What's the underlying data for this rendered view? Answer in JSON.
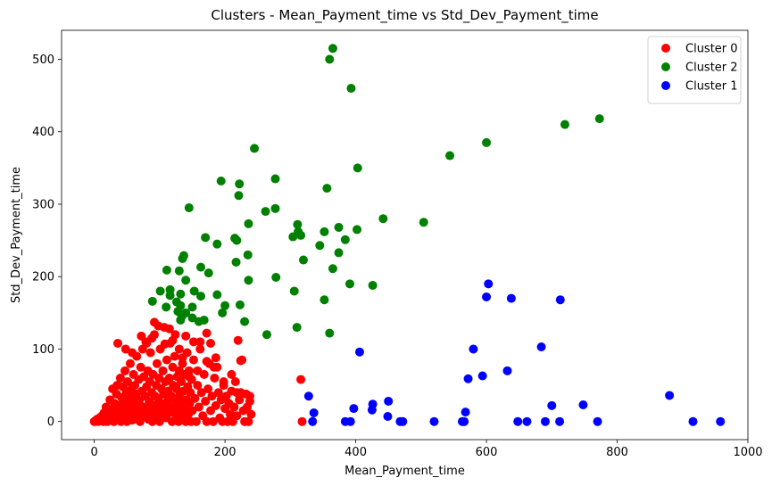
{
  "chart_data": {
    "type": "scatter",
    "title": "Clusters - Mean_Payment_time vs Std_Dev_Payment_time",
    "xlabel": "Mean_Payment_time",
    "ylabel": "Std_Dev_Payment_time",
    "xlim": [
      -50,
      1000
    ],
    "ylim": [
      -25,
      540
    ],
    "xticks": [
      0,
      200,
      400,
      600,
      800,
      1000
    ],
    "yticks": [
      0,
      100,
      200,
      300,
      400,
      500
    ],
    "grid": false,
    "legend_position": "top-right",
    "series": [
      {
        "name": "Cluster 0",
        "color": "#ff0000",
        "points": [
          [
            0,
            0
          ],
          [
            2,
            1
          ],
          [
            4,
            3
          ],
          [
            6,
            0
          ],
          [
            8,
            5
          ],
          [
            10,
            2
          ],
          [
            12,
            8
          ],
          [
            14,
            0
          ],
          [
            15,
            12
          ],
          [
            16,
            4
          ],
          [
            18,
            20
          ],
          [
            20,
            0
          ],
          [
            21,
            15
          ],
          [
            22,
            6
          ],
          [
            24,
            30
          ],
          [
            25,
            10
          ],
          [
            26,
            2
          ],
          [
            28,
            45
          ],
          [
            29,
            18
          ],
          [
            30,
            0
          ],
          [
            31,
            25
          ],
          [
            32,
            8
          ],
          [
            34,
            38
          ],
          [
            35,
            50
          ],
          [
            36,
            14
          ],
          [
            37,
            3
          ],
          [
            38,
            22
          ],
          [
            40,
            60
          ],
          [
            41,
            0
          ],
          [
            42,
            33
          ],
          [
            43,
            12
          ],
          [
            44,
            48
          ],
          [
            45,
            5
          ],
          [
            46,
            27
          ],
          [
            47,
            70
          ],
          [
            48,
            16
          ],
          [
            49,
            40
          ],
          [
            50,
            0
          ],
          [
            51,
            55
          ],
          [
            52,
            20
          ],
          [
            53,
            8
          ],
          [
            54,
            35
          ],
          [
            55,
            80
          ],
          [
            56,
            12
          ],
          [
            57,
            45
          ],
          [
            58,
            2
          ],
          [
            59,
            28
          ],
          [
            60,
            65
          ],
          [
            61,
            18
          ],
          [
            62,
            50
          ],
          [
            63,
            5
          ],
          [
            64,
            38
          ],
          [
            65,
            90
          ],
          [
            66,
            24
          ],
          [
            67,
            10
          ],
          [
            68,
            58
          ],
          [
            69,
            30
          ],
          [
            70,
            0
          ],
          [
            71,
            75
          ],
          [
            72,
            15
          ],
          [
            73,
            42
          ],
          [
            74,
            100
          ],
          [
            75,
            20
          ],
          [
            76,
            62
          ],
          [
            77,
            8
          ],
          [
            78,
            35
          ],
          [
            79,
            110
          ],
          [
            80,
            48
          ],
          [
            81,
            18
          ],
          [
            82,
            70
          ],
          [
            83,
            3
          ],
          [
            84,
            28
          ],
          [
            85,
            55
          ],
          [
            86,
            95
          ],
          [
            87,
            12
          ],
          [
            88,
            40
          ],
          [
            89,
            0
          ],
          [
            90,
            65
          ],
          [
            91,
            22
          ],
          [
            92,
            120
          ],
          [
            93,
            35
          ],
          [
            94,
            8
          ],
          [
            95,
            50
          ],
          [
            96,
            80
          ],
          [
            97,
            15
          ],
          [
            98,
            30
          ],
          [
            99,
            60
          ],
          [
            100,
            0
          ],
          [
            101,
            100
          ],
          [
            102,
            25
          ],
          [
            103,
            45
          ],
          [
            104,
            10
          ],
          [
            105,
            70
          ],
          [
            106,
            38
          ],
          [
            107,
            130
          ],
          [
            108,
            18
          ],
          [
            109,
            55
          ],
          [
            110,
            5
          ],
          [
            111,
            85
          ],
          [
            112,
            28
          ],
          [
            113,
            42
          ],
          [
            114,
            12
          ],
          [
            115,
            60
          ],
          [
            116,
            108
          ],
          [
            117,
            20
          ],
          [
            118,
            35
          ],
          [
            119,
            0
          ],
          [
            120,
            75
          ],
          [
            121,
            50
          ],
          [
            122,
            15
          ],
          [
            123,
            90
          ],
          [
            124,
            30
          ],
          [
            125,
            8
          ],
          [
            126,
            45
          ],
          [
            127,
            62
          ],
          [
            128,
            22
          ],
          [
            129,
            0
          ],
          [
            130,
            100
          ],
          [
            131,
            38
          ],
          [
            132,
            12
          ],
          [
            133,
            55
          ],
          [
            134,
            28
          ],
          [
            135,
            80
          ],
          [
            136,
            5
          ],
          [
            137,
            42
          ],
          [
            138,
            18
          ],
          [
            139,
            65
          ],
          [
            140,
            0
          ],
          [
            141,
            30
          ],
          [
            142,
            95
          ],
          [
            143,
            48
          ],
          [
            144,
            10
          ],
          [
            145,
            70
          ],
          [
            146,
            25
          ],
          [
            147,
            40
          ],
          [
            148,
            0
          ],
          [
            149,
            58
          ],
          [
            150,
            15
          ],
          [
            152,
            85
          ],
          [
            154,
            32
          ],
          [
            156,
            0
          ],
          [
            158,
            50
          ],
          [
            160,
            20
          ],
          [
            162,
            110
          ],
          [
            164,
            40
          ],
          [
            166,
            8
          ],
          [
            168,
            65
          ],
          [
            170,
            28
          ],
          [
            172,
            0
          ],
          [
            174,
            45
          ],
          [
            176,
            80
          ],
          [
            178,
            15
          ],
          [
            180,
            35
          ],
          [
            182,
            0
          ],
          [
            184,
            60
          ],
          [
            186,
            22
          ],
          [
            188,
            75
          ],
          [
            190,
            40
          ],
          [
            192,
            5
          ],
          [
            194,
            30
          ],
          [
            196,
            0
          ],
          [
            198,
            50
          ],
          [
            200,
            18
          ],
          [
            202,
            35
          ],
          [
            204,
            0
          ],
          [
            206,
            25
          ],
          [
            208,
            10
          ],
          [
            210,
            42
          ],
          [
            212,
            0
          ],
          [
            214,
            20
          ],
          [
            216,
            55
          ],
          [
            218,
            8
          ],
          [
            220,
            112
          ],
          [
            222,
            30
          ],
          [
            224,
            40
          ],
          [
            226,
            85
          ],
          [
            228,
            15
          ],
          [
            230,
            0
          ],
          [
            232,
            38
          ],
          [
            234,
            20
          ],
          [
            236,
            0
          ],
          [
            238,
            28
          ],
          [
            240,
            10
          ],
          [
            92,
            137
          ],
          [
            98,
            132
          ],
          [
            108,
            107
          ],
          [
            115,
            128
          ],
          [
            124,
            120
          ],
          [
            140,
            118
          ],
          [
            152,
            110
          ],
          [
            162,
            100
          ],
          [
            172,
            122
          ],
          [
            178,
            108
          ],
          [
            183,
            75
          ],
          [
            88,
            115
          ],
          [
            80,
            108
          ],
          [
            36,
            108
          ],
          [
            48,
            100
          ],
          [
            58,
            95
          ],
          [
            72,
            118
          ],
          [
            120,
            112
          ],
          [
            135,
            88
          ],
          [
            210,
            65
          ],
          [
            218,
            40
          ],
          [
            224,
            84
          ],
          [
            238,
            35
          ],
          [
            186,
            88
          ],
          [
            172,
            83
          ],
          [
            158,
            70
          ],
          [
            145,
            62
          ],
          [
            130,
            70
          ],
          [
            198,
            55
          ],
          [
            316,
            58
          ],
          [
            318,
            0
          ]
        ]
      },
      {
        "name": "Cluster 2",
        "color": "#008000",
        "points": [
          [
            365,
            515
          ],
          [
            360,
            500
          ],
          [
            393,
            460
          ],
          [
            773,
            418
          ],
          [
            720,
            410
          ],
          [
            600,
            385
          ],
          [
            245,
            377
          ],
          [
            544,
            367
          ],
          [
            403,
            350
          ],
          [
            277,
            335
          ],
          [
            194,
            332
          ],
          [
            222,
            328
          ],
          [
            356,
            322
          ],
          [
            221,
            312
          ],
          [
            145,
            295
          ],
          [
            277,
            294
          ],
          [
            262,
            290
          ],
          [
            442,
            280
          ],
          [
            311,
            272
          ],
          [
            236,
            273
          ],
          [
            504,
            275
          ],
          [
            374,
            268
          ],
          [
            402,
            265
          ],
          [
            312,
            262
          ],
          [
            352,
            262
          ],
          [
            316,
            257
          ],
          [
            304,
            255
          ],
          [
            215,
            253
          ],
          [
            170,
            254
          ],
          [
            384,
            251
          ],
          [
            218,
            250
          ],
          [
            345,
            243
          ],
          [
            188,
            245
          ],
          [
            374,
            233
          ],
          [
            235,
            230
          ],
          [
            137,
            229
          ],
          [
            135,
            225
          ],
          [
            320,
            223
          ],
          [
            217,
            220
          ],
          [
            163,
            213
          ],
          [
            365,
            211
          ],
          [
            111,
            209
          ],
          [
            130,
            208
          ],
          [
            175,
            205
          ],
          [
            140,
            195
          ],
          [
            236,
            195
          ],
          [
            278,
            199
          ],
          [
            391,
            190
          ],
          [
            426,
            188
          ],
          [
            116,
            182
          ],
          [
            101,
            180
          ],
          [
            153,
            180
          ],
          [
            116,
            174
          ],
          [
            132,
            176
          ],
          [
            188,
            175
          ],
          [
            163,
            173
          ],
          [
            306,
            180
          ],
          [
            352,
            168
          ],
          [
            89,
            166
          ],
          [
            126,
            165
          ],
          [
            150,
            158
          ],
          [
            110,
            158
          ],
          [
            200,
            160
          ],
          [
            223,
            161
          ],
          [
            132,
            160
          ],
          [
            140,
            150
          ],
          [
            196,
            150
          ],
          [
            134,
            145
          ],
          [
            132,
            140
          ],
          [
            150,
            143
          ],
          [
            168,
            140
          ],
          [
            230,
            138
          ],
          [
            310,
            130
          ],
          [
            264,
            120
          ],
          [
            360,
            122
          ],
          [
            128,
            152
          ],
          [
            160,
            138
          ]
        ]
      },
      {
        "name": "Cluster 1",
        "color": "#0000ff",
        "points": [
          [
            603,
            190
          ],
          [
            600,
            172
          ],
          [
            638,
            170
          ],
          [
            713,
            168
          ],
          [
            684,
            103
          ],
          [
            580,
            100
          ],
          [
            406,
            96
          ],
          [
            632,
            70
          ],
          [
            594,
            63
          ],
          [
            572,
            59
          ],
          [
            880,
            36
          ],
          [
            328,
            35
          ],
          [
            450,
            28
          ],
          [
            426,
            24
          ],
          [
            748,
            23
          ],
          [
            700,
            22
          ],
          [
            425,
            16
          ],
          [
            397,
            18
          ],
          [
            568,
            13
          ],
          [
            336,
            12
          ],
          [
            449,
            7
          ],
          [
            334,
            0
          ],
          [
            384,
            0
          ],
          [
            392,
            0
          ],
          [
            468,
            0
          ],
          [
            472,
            0
          ],
          [
            520,
            0
          ],
          [
            563,
            0
          ],
          [
            566,
            0
          ],
          [
            648,
            0
          ],
          [
            662,
            0
          ],
          [
            690,
            0
          ],
          [
            712,
            0
          ],
          [
            770,
            0
          ],
          [
            916,
            0
          ],
          [
            958,
            0
          ]
        ]
      }
    ]
  }
}
